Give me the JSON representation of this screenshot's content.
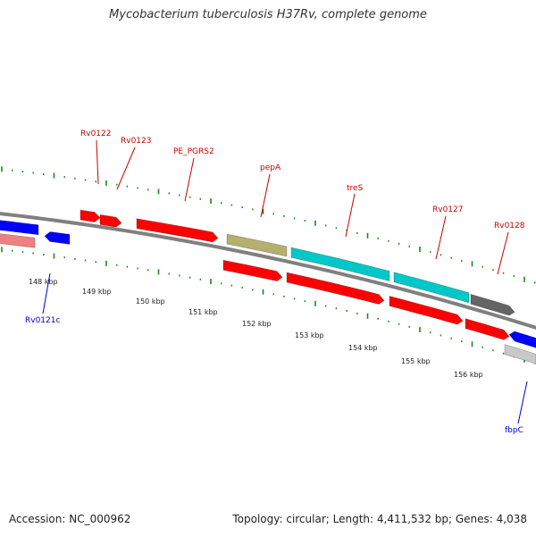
{
  "title": "Mycobacterium tuberculosis H37Rv, complete genome",
  "footer": {
    "accession": "Accession: NC_000962",
    "summary": "Topology: circular; Length: 4,411,532 bp; Genes: 4,038"
  },
  "colors": {
    "backbone": "#808080",
    "tick": "#1a8a1a",
    "label_forward": "#cc0000",
    "label_reverse": "#0000cc",
    "label_scale": "#222222",
    "red": "#ff0000",
    "red_light": "#f08080",
    "blue": "#0000ff",
    "cyan": "#00c8c8",
    "olive": "#b5b070",
    "gray_dark": "#646464",
    "gray_light": "#c8c8c8"
  },
  "scale_labels": [
    "148 kbp",
    "149 kbp",
    "150 kbp",
    "151 kbp",
    "152 kbp",
    "153 kbp",
    "154 kbp",
    "155 kbp",
    "156 kbp"
  ],
  "forward_labels": [
    "Rv0122",
    "Rv0123",
    "PE_PGRS2",
    "pepA",
    "treS",
    "Rv0127",
    "Rv0128"
  ],
  "reverse_labels": [
    "Rv0121c",
    "fbpC"
  ],
  "features": [
    {
      "name": "rv0122-feature",
      "color_key": "red"
    },
    {
      "name": "rv0123-feature",
      "color_key": "red"
    },
    {
      "name": "pe-pgrs2-feature",
      "color_key": "red"
    },
    {
      "name": "pepa-feature",
      "color_key": "olive"
    },
    {
      "name": "tres-feature",
      "color_key": "cyan"
    },
    {
      "name": "rv0127-feature",
      "color_key": "cyan"
    },
    {
      "name": "rv0128-feature",
      "color_key": "gray_dark"
    },
    {
      "name": "rv0121c-feature",
      "color_key": "blue"
    },
    {
      "name": "fbpc-feature",
      "color_key": "blue"
    }
  ]
}
